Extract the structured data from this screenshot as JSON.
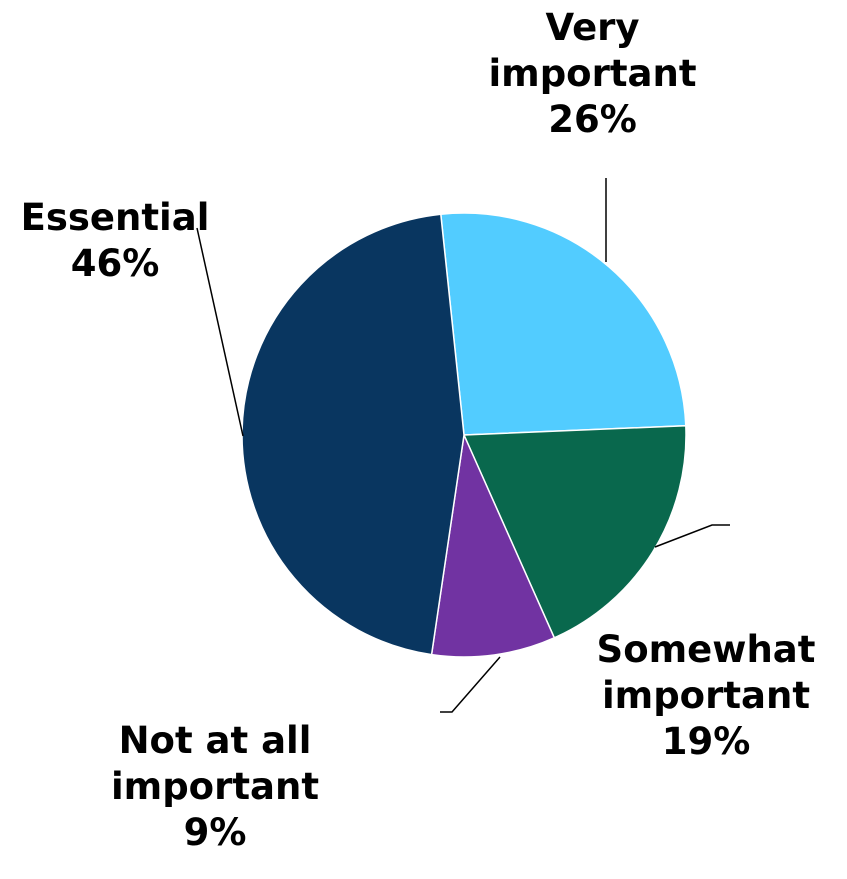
{
  "chart_data": {
    "type": "pie",
    "title": "",
    "slices": [
      {
        "name_lines": [
          "Very",
          "important"
        ],
        "pct_label": "26%",
        "value": 26,
        "color": "#52CCFF"
      },
      {
        "name_lines": [
          "Somewhat",
          "important"
        ],
        "pct_label": "19%",
        "value": 19,
        "color": "#09684D"
      },
      {
        "name_lines": [
          "Not at all",
          "important"
        ],
        "pct_label": "9%",
        "value": 9,
        "color": "#7133A2"
      },
      {
        "name_lines": [
          "Essential"
        ],
        "pct_label": "46%",
        "value": 46,
        "color": "#093660"
      }
    ],
    "legend": "none"
  }
}
